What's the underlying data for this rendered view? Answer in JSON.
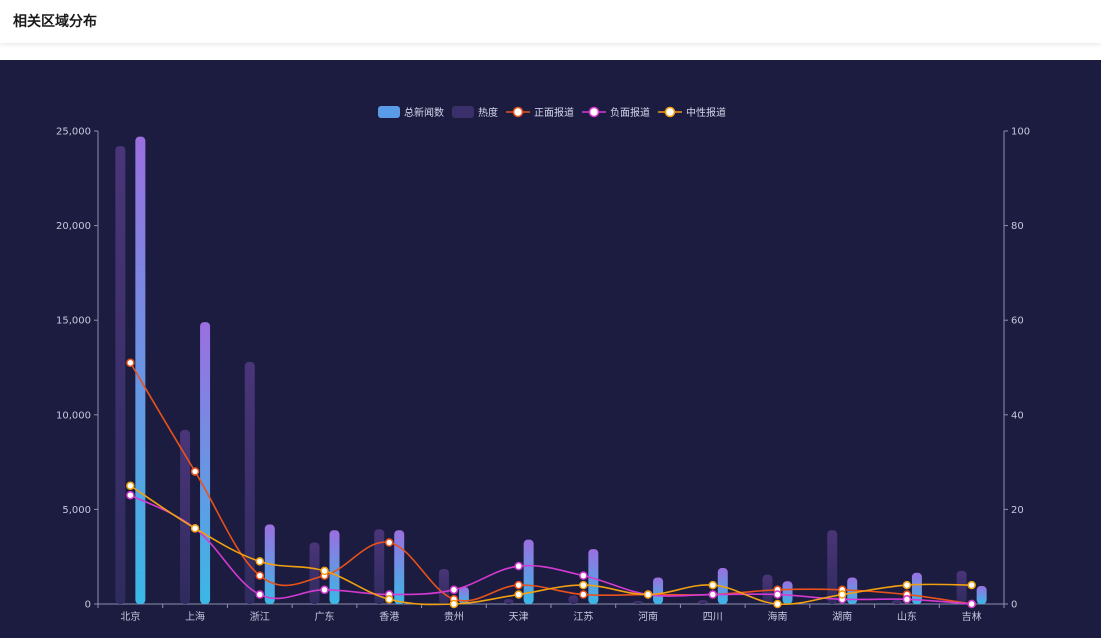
{
  "page": {
    "title": "相关区域分布"
  },
  "chart_data": {
    "type": "bar",
    "categories": [
      "北京",
      "上海",
      "浙江",
      "广东",
      "香港",
      "贵州",
      "天津",
      "江苏",
      "河南",
      "四川",
      "海南",
      "湖南",
      "山东",
      "吉林"
    ],
    "series": [
      {
        "name": "总新闻数",
        "kind": "bar",
        "axis": "left",
        "color": "#4fb3e8",
        "color_top": "#9b6fe0",
        "values": [
          24700,
          14900,
          4200,
          3900,
          3900,
          900,
          3400,
          2900,
          1400,
          1900,
          1200,
          1400,
          1650,
          950
        ]
      },
      {
        "name": "热度",
        "kind": "bar",
        "axis": "left",
        "color": "#44306e",
        "values": [
          24200,
          9200,
          12800,
          3250,
          3950,
          1850,
          250,
          450,
          150,
          200,
          1550,
          3900,
          200,
          1750
        ]
      },
      {
        "name": "正面报道",
        "kind": "line",
        "axis": "right",
        "color": "#e8521a",
        "values": [
          51,
          28,
          6,
          6,
          13,
          1,
          4,
          2,
          2,
          2,
          3,
          3,
          2,
          0
        ]
      },
      {
        "name": "负面报道",
        "kind": "line",
        "axis": "right",
        "color": "#d43ad0",
        "values": [
          23,
          16,
          2,
          3,
          2,
          3,
          8,
          6,
          2,
          2,
          2,
          1,
          1,
          0
        ]
      },
      {
        "name": "中性报道",
        "kind": "line",
        "axis": "right",
        "color": "#f0a010",
        "values": [
          25,
          16,
          9,
          7,
          1,
          0,
          2,
          4,
          2,
          4,
          0,
          2,
          4,
          4
        ]
      }
    ],
    "y_left": {
      "min": 0,
      "max": 25000,
      "ticks": [
        0,
        5000,
        10000,
        15000,
        20000,
        25000
      ]
    },
    "y_right": {
      "min": 0,
      "max": 100,
      "ticks": [
        0,
        20,
        40,
        60,
        80,
        100
      ]
    },
    "legend": {
      "placement": "top-center"
    },
    "grid": false,
    "tick_labels_left": [
      "0",
      "5,000",
      "10,000",
      "15,000",
      "20,000",
      "25,000"
    ],
    "tick_labels_right": [
      "0",
      "20",
      "40",
      "60",
      "80",
      "100"
    ]
  }
}
